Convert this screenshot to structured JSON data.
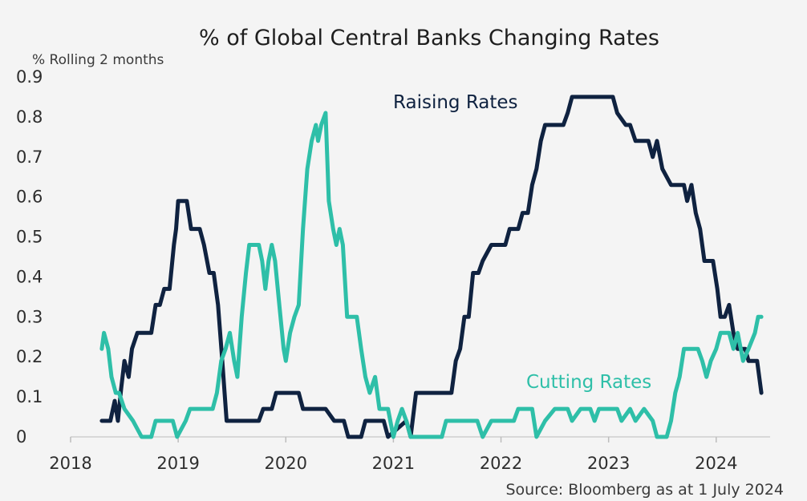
{
  "chart_data": {
    "type": "line",
    "title": "% of Global Central Banks Changing Rates",
    "ylabel": "% Rolling 2 months",
    "xlabel": "",
    "xlim": [
      2018.0,
      2024.65
    ],
    "ylim": [
      0,
      0.9
    ],
    "x_ticks": [
      "2018",
      "2019",
      "2020",
      "2021",
      "2022",
      "2023",
      "2024"
    ],
    "y_ticks": [
      "0",
      "0.1",
      "0.2",
      "0.3",
      "0.4",
      "0.5",
      "0.6",
      "0.7",
      "0.8",
      "0.9"
    ],
    "grid": false,
    "legend": "inline labels",
    "source": "Source: Bloomberg as  at 1 July 2024",
    "series": [
      {
        "name": "Raising Rates",
        "color": "#0f2240",
        "points": [
          [
            2018.29,
            0.04
          ],
          [
            2018.37,
            0.04
          ],
          [
            2018.41,
            0.09
          ],
          [
            2018.44,
            0.04
          ],
          [
            2018.47,
            0.12
          ],
          [
            2018.5,
            0.19
          ],
          [
            2018.54,
            0.15
          ],
          [
            2018.57,
            0.22
          ],
          [
            2018.62,
            0.26
          ],
          [
            2018.75,
            0.26
          ],
          [
            2018.79,
            0.33
          ],
          [
            2018.83,
            0.33
          ],
          [
            2018.87,
            0.37
          ],
          [
            2018.92,
            0.37
          ],
          [
            2018.96,
            0.48
          ],
          [
            2018.98,
            0.52
          ],
          [
            2019.0,
            0.59
          ],
          [
            2019.08,
            0.59
          ],
          [
            2019.12,
            0.52
          ],
          [
            2019.2,
            0.52
          ],
          [
            2019.24,
            0.48
          ],
          [
            2019.29,
            0.41
          ],
          [
            2019.33,
            0.41
          ],
          [
            2019.37,
            0.33
          ],
          [
            2019.41,
            0.19
          ],
          [
            2019.45,
            0.04
          ],
          [
            2019.75,
            0.04
          ],
          [
            2019.79,
            0.07
          ],
          [
            2019.87,
            0.07
          ],
          [
            2019.91,
            0.11
          ],
          [
            2020.12,
            0.11
          ],
          [
            2020.16,
            0.07
          ],
          [
            2020.37,
            0.07
          ],
          [
            2020.45,
            0.04
          ],
          [
            2020.54,
            0.04
          ],
          [
            2020.58,
            0.0
          ],
          [
            2020.7,
            0.0
          ],
          [
            2020.74,
            0.04
          ],
          [
            2020.91,
            0.04
          ],
          [
            2020.95,
            0.0
          ],
          [
            2021.12,
            0.04
          ],
          [
            2021.16,
            0.0
          ],
          [
            2021.21,
            0.11
          ],
          [
            2021.54,
            0.11
          ],
          [
            2021.58,
            0.19
          ],
          [
            2021.62,
            0.22
          ],
          [
            2021.66,
            0.3
          ],
          [
            2021.7,
            0.3
          ],
          [
            2021.74,
            0.41
          ],
          [
            2021.79,
            0.41
          ],
          [
            2021.83,
            0.44
          ],
          [
            2021.91,
            0.48
          ],
          [
            2022.04,
            0.48
          ],
          [
            2022.08,
            0.52
          ],
          [
            2022.16,
            0.52
          ],
          [
            2022.2,
            0.56
          ],
          [
            2022.25,
            0.56
          ],
          [
            2022.29,
            0.63
          ],
          [
            2022.33,
            0.67
          ],
          [
            2022.37,
            0.74
          ],
          [
            2022.41,
            0.78
          ],
          [
            2022.58,
            0.78
          ],
          [
            2022.62,
            0.81
          ],
          [
            2022.66,
            0.85
          ],
          [
            2022.95,
            0.85
          ],
          [
            2023.04,
            0.85
          ],
          [
            2023.08,
            0.81
          ],
          [
            2023.16,
            0.78
          ],
          [
            2023.2,
            0.78
          ],
          [
            2023.25,
            0.74
          ],
          [
            2023.37,
            0.74
          ],
          [
            2023.41,
            0.7
          ],
          [
            2023.45,
            0.74
          ],
          [
            2023.5,
            0.67
          ],
          [
            2023.58,
            0.63
          ],
          [
            2023.7,
            0.63
          ],
          [
            2023.73,
            0.59
          ],
          [
            2023.77,
            0.63
          ],
          [
            2023.81,
            0.56
          ],
          [
            2023.85,
            0.52
          ],
          [
            2023.89,
            0.44
          ],
          [
            2023.97,
            0.44
          ],
          [
            2024.01,
            0.37
          ],
          [
            2024.04,
            0.3
          ],
          [
            2024.08,
            0.3
          ],
          [
            2024.12,
            0.33
          ],
          [
            2024.16,
            0.26
          ],
          [
            2024.2,
            0.22
          ],
          [
            2024.27,
            0.22
          ],
          [
            2024.3,
            0.19
          ],
          [
            2024.38,
            0.19
          ],
          [
            2024.42,
            0.11
          ]
        ]
      },
      {
        "name": "Cutting Rates",
        "color": "#2ebfa8",
        "points": [
          [
            2018.29,
            0.22
          ],
          [
            2018.31,
            0.26
          ],
          [
            2018.35,
            0.22
          ],
          [
            2018.38,
            0.15
          ],
          [
            2018.42,
            0.11
          ],
          [
            2018.45,
            0.11
          ],
          [
            2018.5,
            0.07
          ],
          [
            2018.58,
            0.04
          ],
          [
            2018.66,
            0.0
          ],
          [
            2018.75,
            0.0
          ],
          [
            2018.79,
            0.04
          ],
          [
            2018.95,
            0.04
          ],
          [
            2018.99,
            0.0
          ],
          [
            2019.07,
            0.04
          ],
          [
            2019.11,
            0.07
          ],
          [
            2019.32,
            0.07
          ],
          [
            2019.36,
            0.11
          ],
          [
            2019.4,
            0.19
          ],
          [
            2019.44,
            0.22
          ],
          [
            2019.48,
            0.26
          ],
          [
            2019.52,
            0.19
          ],
          [
            2019.55,
            0.15
          ],
          [
            2019.59,
            0.3
          ],
          [
            2019.63,
            0.41
          ],
          [
            2019.66,
            0.48
          ],
          [
            2019.75,
            0.48
          ],
          [
            2019.78,
            0.44
          ],
          [
            2019.81,
            0.37
          ],
          [
            2019.84,
            0.44
          ],
          [
            2019.87,
            0.48
          ],
          [
            2019.9,
            0.44
          ],
          [
            2019.94,
            0.33
          ],
          [
            2019.98,
            0.22
          ],
          [
            2020.0,
            0.19
          ],
          [
            2020.04,
            0.26
          ],
          [
            2020.08,
            0.3
          ],
          [
            2020.12,
            0.33
          ],
          [
            2020.16,
            0.52
          ],
          [
            2020.2,
            0.67
          ],
          [
            2020.24,
            0.74
          ],
          [
            2020.28,
            0.78
          ],
          [
            2020.3,
            0.74
          ],
          [
            2020.33,
            0.78
          ],
          [
            2020.37,
            0.81
          ],
          [
            2020.4,
            0.59
          ],
          [
            2020.44,
            0.52
          ],
          [
            2020.47,
            0.48
          ],
          [
            2020.5,
            0.52
          ],
          [
            2020.53,
            0.48
          ],
          [
            2020.57,
            0.3
          ],
          [
            2020.66,
            0.3
          ],
          [
            2020.7,
            0.22
          ],
          [
            2020.74,
            0.15
          ],
          [
            2020.78,
            0.11
          ],
          [
            2020.83,
            0.15
          ],
          [
            2020.87,
            0.07
          ],
          [
            2020.95,
            0.07
          ],
          [
            2021.0,
            0.0
          ],
          [
            2021.04,
            0.04
          ],
          [
            2021.08,
            0.07
          ],
          [
            2021.12,
            0.04
          ],
          [
            2021.16,
            0.0
          ],
          [
            2021.45,
            0.0
          ],
          [
            2021.49,
            0.04
          ],
          [
            2021.78,
            0.04
          ],
          [
            2021.83,
            0.0
          ],
          [
            2021.91,
            0.04
          ],
          [
            2022.12,
            0.04
          ],
          [
            2022.16,
            0.07
          ],
          [
            2022.29,
            0.07
          ],
          [
            2022.33,
            0.0
          ],
          [
            2022.41,
            0.04
          ],
          [
            2022.5,
            0.07
          ],
          [
            2022.62,
            0.07
          ],
          [
            2022.66,
            0.04
          ],
          [
            2022.74,
            0.07
          ],
          [
            2022.83,
            0.07
          ],
          [
            2022.87,
            0.04
          ],
          [
            2022.91,
            0.07
          ],
          [
            2023.08,
            0.07
          ],
          [
            2023.12,
            0.04
          ],
          [
            2023.2,
            0.07
          ],
          [
            2023.25,
            0.04
          ],
          [
            2023.33,
            0.07
          ],
          [
            2023.41,
            0.04
          ],
          [
            2023.45,
            0.0
          ],
          [
            2023.54,
            0.0
          ],
          [
            2023.58,
            0.04
          ],
          [
            2023.62,
            0.11
          ],
          [
            2023.66,
            0.15
          ],
          [
            2023.7,
            0.22
          ],
          [
            2023.83,
            0.22
          ],
          [
            2023.87,
            0.19
          ],
          [
            2023.91,
            0.15
          ],
          [
            2023.95,
            0.19
          ],
          [
            2024.0,
            0.22
          ],
          [
            2024.04,
            0.26
          ],
          [
            2024.12,
            0.26
          ],
          [
            2024.16,
            0.22
          ],
          [
            2024.2,
            0.26
          ],
          [
            2024.25,
            0.19
          ],
          [
            2024.3,
            0.22
          ],
          [
            2024.36,
            0.26
          ],
          [
            2024.39,
            0.3
          ],
          [
            2024.42,
            0.3
          ]
        ]
      }
    ]
  }
}
